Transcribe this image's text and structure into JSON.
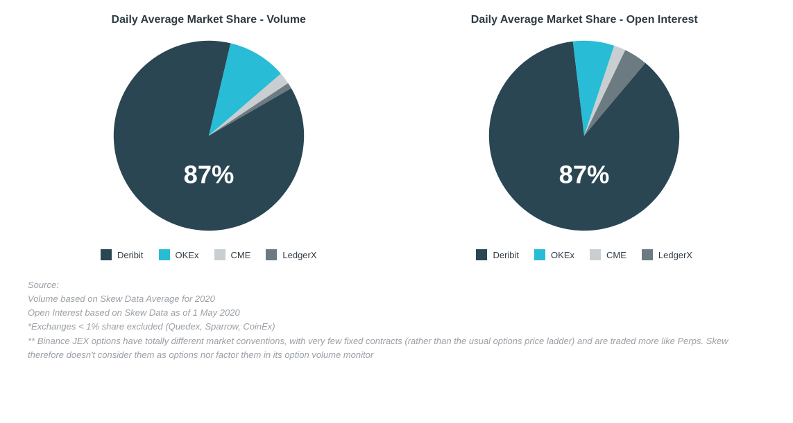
{
  "colors": {
    "background": "#ffffff",
    "title_text": "#2f3b44",
    "footnote_text": "#9aa0a6",
    "center_label_text": "#ffffff"
  },
  "typography": {
    "title_fontsize": 16,
    "title_weight": 700,
    "legend_fontsize": 13,
    "footnote_fontsize": 13,
    "center_label_fontsize": 26,
    "center_label_weight": 700,
    "font_family": "Arial, Helvetica, sans-serif"
  },
  "charts": {
    "volume": {
      "type": "pie",
      "title": "Daily Average Market Share - Volume",
      "center_label": "87%",
      "start_angle_deg": 60,
      "slices": [
        {
          "name": "Deribit",
          "value": 87,
          "color": "#2b4653"
        },
        {
          "name": "OKEx",
          "value": 10,
          "color": "#28bcd6"
        },
        {
          "name": "CME",
          "value": 2,
          "color": "#c9ced1"
        },
        {
          "name": "LedgerX",
          "value": 1,
          "color": "#6c7a82"
        }
      ],
      "legend": [
        {
          "label": "Deribit",
          "color": "#2b4653"
        },
        {
          "label": "OKEx",
          "color": "#28bcd6"
        },
        {
          "label": "CME",
          "color": "#c9ced1"
        },
        {
          "label": "LedgerX",
          "color": "#6c7a82"
        }
      ]
    },
    "open_interest": {
      "type": "pie",
      "title": "Daily Average Market Share - Open Interest",
      "center_label": "87%",
      "start_angle_deg": 40,
      "slices": [
        {
          "name": "Deribit",
          "value": 87,
          "color": "#2b4653"
        },
        {
          "name": "OKEx",
          "value": 7,
          "color": "#28bcd6"
        },
        {
          "name": "CME",
          "value": 2,
          "color": "#c9ced1"
        },
        {
          "name": "LedgerX",
          "value": 4,
          "color": "#6c7a82"
        }
      ],
      "legend": [
        {
          "label": "Deribit",
          "color": "#2b4653"
        },
        {
          "label": "OKEx",
          "color": "#28bcd6"
        },
        {
          "label": "CME",
          "color": "#c9ced1"
        },
        {
          "label": "LedgerX",
          "color": "#6c7a82"
        }
      ]
    }
  },
  "footnotes": {
    "line0": "Source:",
    "line1": "Volume based on Skew Data Average for 2020",
    "line2": "Open Interest based on Skew Data as of 1 May 2020",
    "line3": "*Exchanges < 1% share excluded (Quedex, Sparrow, CoinEx)",
    "line4": "** Binance JEX options have totally different market conventions, with very few fixed contracts (rather than the usual options price ladder) and are traded more like Perps. Skew therefore doesn't consider them as options nor factor them in its option volume monitor"
  }
}
